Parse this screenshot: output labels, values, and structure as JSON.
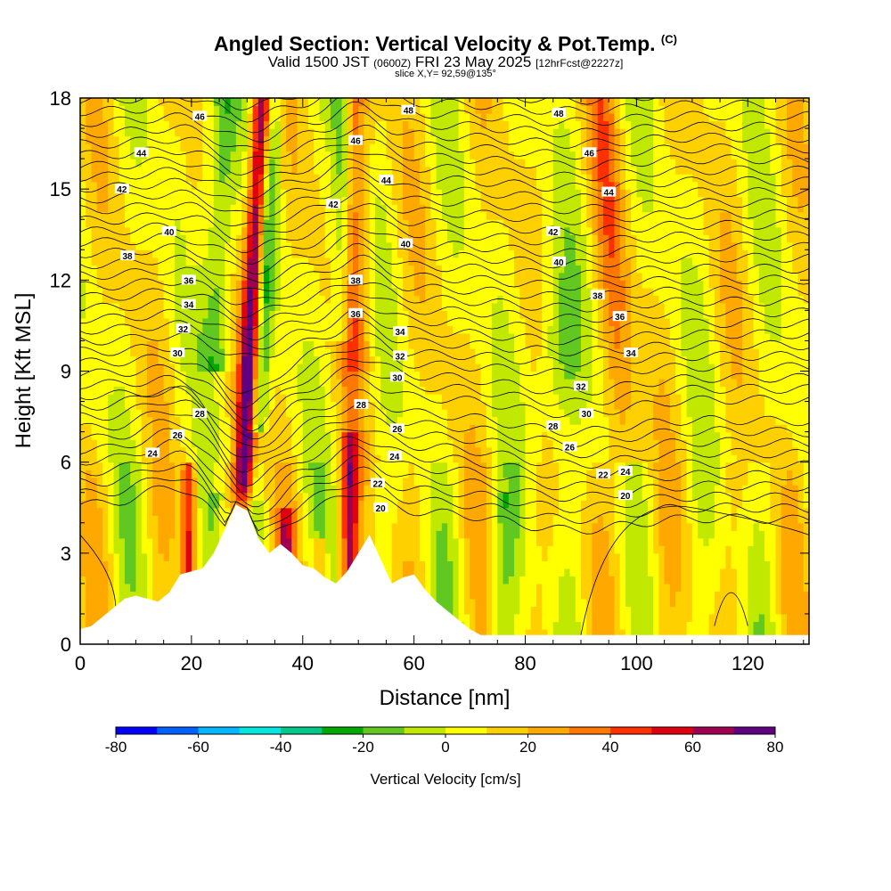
{
  "chart_data": {
    "type": "heatmap",
    "title": "Angled Section: Vertical Velocity & Pot.Temp.",
    "title_tag": "(C)",
    "subtitle_main": "Valid 1500 JST",
    "subtitle_utc": "(0600Z)",
    "subtitle_date": "FRI 23 May 2025",
    "subtitle_run": "[12hrFcst@2227z]",
    "slice_info": "slice X,Y= 92,59@135°",
    "xlabel": "Distance [nm]",
    "ylabel": "Height [Kft MSL]",
    "xlim": [
      0,
      131
    ],
    "ylim": [
      0,
      18
    ],
    "x_ticks": [
      "0",
      "20",
      "40",
      "60",
      "80",
      "100",
      "120"
    ],
    "y_ticks": [
      "0",
      "3",
      "6",
      "9",
      "12",
      "15",
      "18"
    ],
    "colorbar": {
      "title": "Vertical Velocity [cm/s]",
      "tick_labels": [
        "-80",
        "-60",
        "-40",
        "-20",
        "0",
        "20",
        "40",
        "60",
        "80"
      ],
      "range": [
        -80,
        80
      ],
      "colors": [
        "#0000ff",
        "#0060ff",
        "#00b8ff",
        "#00e8e0",
        "#00c888",
        "#00a800",
        "#60c820",
        "#c0e800",
        "#ffff00",
        "#ffd000",
        "#ffa800",
        "#ff7800",
        "#ff3000",
        "#e00010",
        "#a00050",
        "#600080"
      ]
    },
    "terrain": [
      [
        0,
        0.5
      ],
      [
        2,
        0.6
      ],
      [
        4,
        0.9
      ],
      [
        6,
        1.2
      ],
      [
        8,
        1.5
      ],
      [
        10,
        1.6
      ],
      [
        12,
        1.5
      ],
      [
        14,
        1.4
      ],
      [
        16,
        1.7
      ],
      [
        18,
        2.3
      ],
      [
        20,
        2.4
      ],
      [
        22,
        2.5
      ],
      [
        24,
        3.0
      ],
      [
        26,
        3.8
      ],
      [
        28,
        4.6
      ],
      [
        30,
        4.4
      ],
      [
        32,
        3.5
      ],
      [
        34,
        3.0
      ],
      [
        36,
        3.3
      ],
      [
        38,
        3.0
      ],
      [
        40,
        2.6
      ],
      [
        42,
        2.5
      ],
      [
        44,
        2.2
      ],
      [
        46,
        2.0
      ],
      [
        48,
        2.4
      ],
      [
        50,
        3.0
      ],
      [
        52,
        3.6
      ],
      [
        54,
        2.8
      ],
      [
        56,
        2.0
      ],
      [
        58,
        2.2
      ],
      [
        60,
        2.3
      ],
      [
        62,
        1.8
      ],
      [
        64,
        1.4
      ],
      [
        66,
        1.1
      ],
      [
        68,
        0.8
      ],
      [
        70,
        0.5
      ],
      [
        72,
        0.3
      ],
      [
        80,
        0.3
      ],
      [
        90,
        0.3
      ],
      [
        100,
        0.3
      ],
      [
        110,
        0.3
      ],
      [
        120,
        0.3
      ],
      [
        131,
        0.3
      ]
    ],
    "theta_labels": [
      {
        "text": "46",
        "x": 21.5,
        "y": 17.4
      },
      {
        "text": "44",
        "x": 11,
        "y": 16.2
      },
      {
        "text": "42",
        "x": 7.5,
        "y": 15.0
      },
      {
        "text": "40",
        "x": 16,
        "y": 13.6
      },
      {
        "text": "38",
        "x": 8.5,
        "y": 12.8
      },
      {
        "text": "36",
        "x": 19.5,
        "y": 12.0
      },
      {
        "text": "34",
        "x": 19.5,
        "y": 11.2
      },
      {
        "text": "32",
        "x": 18.5,
        "y": 10.4
      },
      {
        "text": "30",
        "x": 17.5,
        "y": 9.6
      },
      {
        "text": "28",
        "x": 21.5,
        "y": 7.6
      },
      {
        "text": "26",
        "x": 17.5,
        "y": 6.9
      },
      {
        "text": "24",
        "x": 13,
        "y": 6.3
      },
      {
        "text": "46",
        "x": 49.5,
        "y": 16.6
      },
      {
        "text": "48",
        "x": 59,
        "y": 17.6
      },
      {
        "text": "44",
        "x": 55,
        "y": 15.3
      },
      {
        "text": "42",
        "x": 45.5,
        "y": 14.5
      },
      {
        "text": "40",
        "x": 58.5,
        "y": 13.2
      },
      {
        "text": "38",
        "x": 49.5,
        "y": 12.0
      },
      {
        "text": "36",
        "x": 49.5,
        "y": 10.9
      },
      {
        "text": "34",
        "x": 57.5,
        "y": 10.3
      },
      {
        "text": "32",
        "x": 57.5,
        "y": 9.5
      },
      {
        "text": "30",
        "x": 57,
        "y": 8.8
      },
      {
        "text": "28",
        "x": 50.5,
        "y": 7.9
      },
      {
        "text": "26",
        "x": 57,
        "y": 7.1
      },
      {
        "text": "24",
        "x": 56.5,
        "y": 6.2
      },
      {
        "text": "22",
        "x": 53.5,
        "y": 5.3
      },
      {
        "text": "20",
        "x": 54,
        "y": 4.5
      },
      {
        "text": "48",
        "x": 86,
        "y": 17.5
      },
      {
        "text": "46",
        "x": 91.5,
        "y": 16.2
      },
      {
        "text": "44",
        "x": 95,
        "y": 14.9
      },
      {
        "text": "42",
        "x": 85,
        "y": 13.6
      },
      {
        "text": "40",
        "x": 86,
        "y": 12.6
      },
      {
        "text": "38",
        "x": 93,
        "y": 11.5
      },
      {
        "text": "36",
        "x": 97,
        "y": 10.8
      },
      {
        "text": "34",
        "x": 99,
        "y": 9.6
      },
      {
        "text": "32",
        "x": 90,
        "y": 8.5
      },
      {
        "text": "30",
        "x": 91,
        "y": 7.6
      },
      {
        "text": "28",
        "x": 85,
        "y": 7.2
      },
      {
        "text": "26",
        "x": 88,
        "y": 6.5
      },
      {
        "text": "22",
        "x": 94,
        "y": 5.6
      },
      {
        "text": "24",
        "x": 98,
        "y": 5.7
      },
      {
        "text": "20",
        "x": 98,
        "y": 4.9
      }
    ],
    "grid": false,
    "legend": "bottom"
  }
}
